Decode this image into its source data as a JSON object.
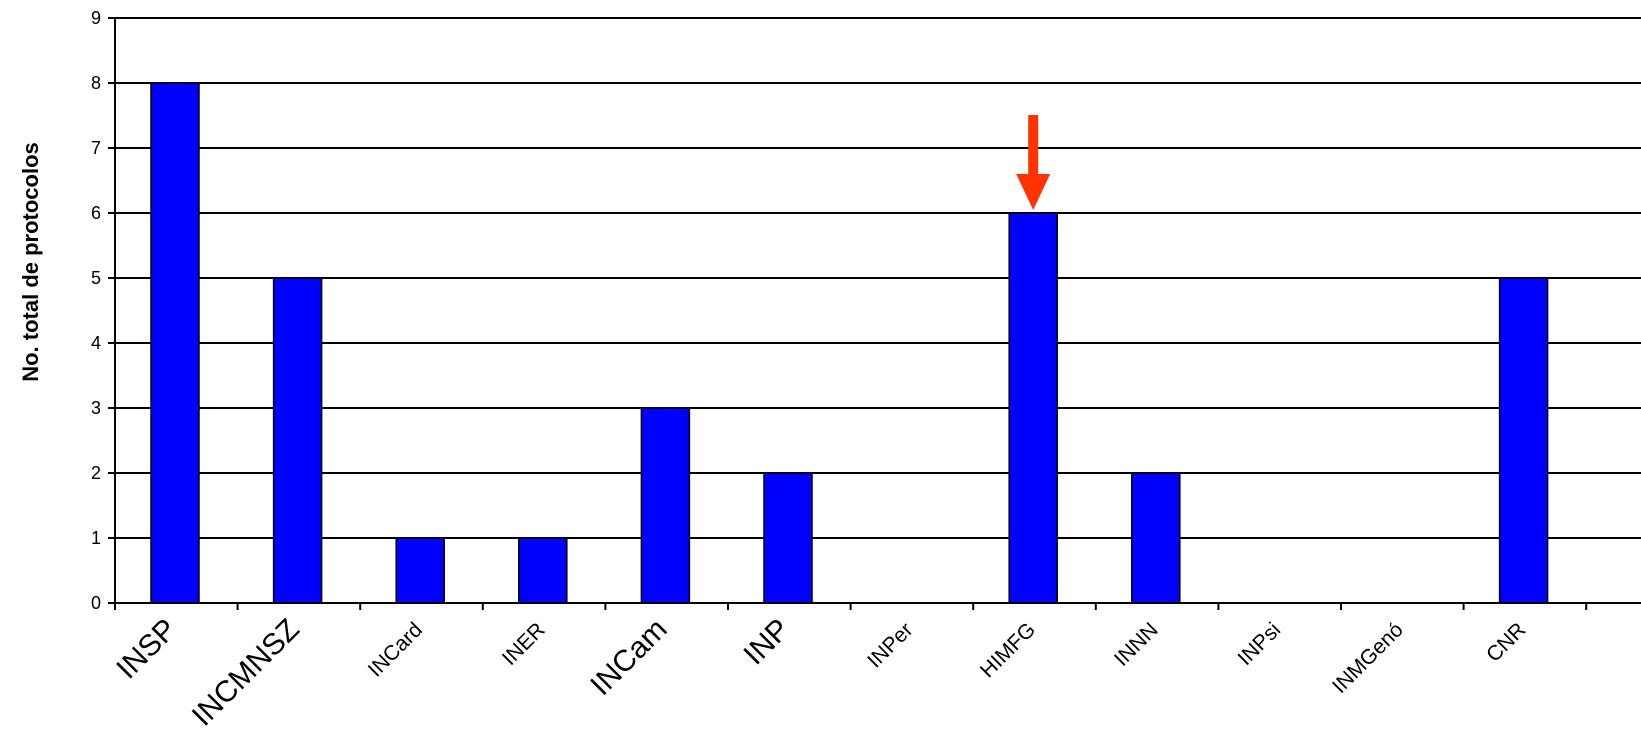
{
  "chart_data": {
    "type": "bar",
    "title": "",
    "xlabel": "",
    "ylabel": "No. total de protocolos",
    "ylim": [
      0,
      9
    ],
    "yticks": [
      0,
      1,
      2,
      3,
      4,
      5,
      6,
      7,
      8,
      9
    ],
    "grid": true,
    "legend": "none",
    "categories": [
      "INSP",
      "INCMNSZ",
      "INCard",
      "INER",
      "INCam",
      "INP",
      "INPer",
      "HIMFG",
      "INNN",
      "INPsi",
      "INMGenó",
      "CNR"
    ],
    "values": [
      8,
      5,
      1,
      1,
      3,
      2,
      0,
      6,
      2,
      0,
      0,
      5
    ],
    "bar_color": "#0000ff",
    "annotation": {
      "type": "arrow",
      "category": "HIMFG",
      "color": "#ff3300"
    }
  }
}
